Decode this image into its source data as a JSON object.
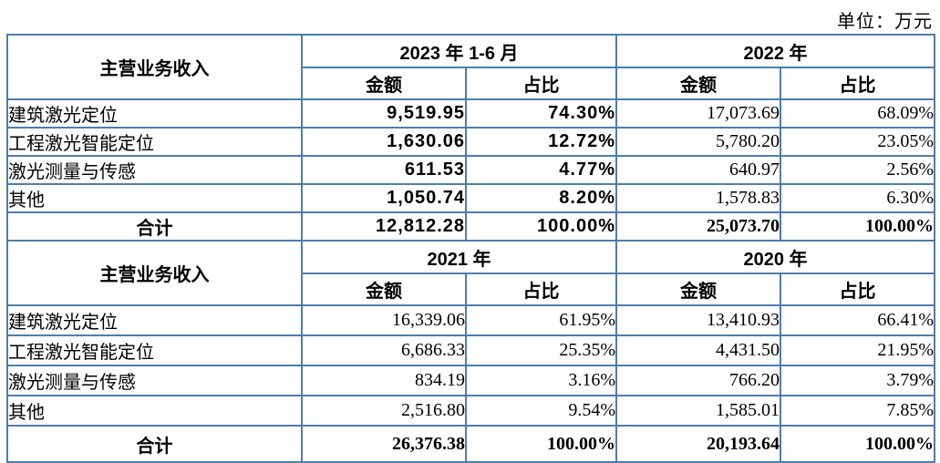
{
  "unit_label": "单位：万元",
  "border_color": "#4e7dad",
  "sections": [
    {
      "row_header": "主营业务收入",
      "year_groups": [
        "2023 年 1-6 月",
        "2022 年"
      ],
      "sub_headers": [
        "金额",
        "占比",
        "金额",
        "占比"
      ],
      "rows": [
        {
          "label": "建筑激光定位",
          "values": [
            "9,519.95",
            "74.30%",
            "17,073.69",
            "68.09%"
          ]
        },
        {
          "label": "工程激光智能定位",
          "values": [
            "1,630.06",
            "12.72%",
            "5,780.20",
            "23.05%"
          ]
        },
        {
          "label": "激光测量与传感",
          "values": [
            "611.53",
            "4.77%",
            "640.97",
            "2.56%"
          ]
        },
        {
          "label": "其他",
          "values": [
            "1,050.74",
            "8.20%",
            "1,578.83",
            "6.30%"
          ]
        }
      ],
      "total": {
        "label": "合计",
        "values": [
          "12,812.28",
          "100.00%",
          "25,073.70",
          "100.00%"
        ]
      }
    },
    {
      "row_header": "主营业务收入",
      "year_groups": [
        "2021 年",
        "2020 年"
      ],
      "sub_headers": [
        "金额",
        "占比",
        "金额",
        "占比"
      ],
      "rows": [
        {
          "label": "建筑激光定位",
          "values": [
            "16,339.06",
            "61.95%",
            "13,410.93",
            "66.41%"
          ]
        },
        {
          "label": "工程激光智能定位",
          "values": [
            "6,686.33",
            "25.35%",
            "4,431.50",
            "21.95%"
          ]
        },
        {
          "label": "激光测量与传感",
          "values": [
            "834.19",
            "3.16%",
            "766.20",
            "3.79%"
          ]
        },
        {
          "label": "其他",
          "values": [
            "2,516.80",
            "9.54%",
            "1,585.01",
            "7.85%"
          ]
        }
      ],
      "total": {
        "label": "合计",
        "values": [
          "26,376.38",
          "100.00%",
          "20,193.64",
          "100.00%"
        ]
      }
    }
  ]
}
